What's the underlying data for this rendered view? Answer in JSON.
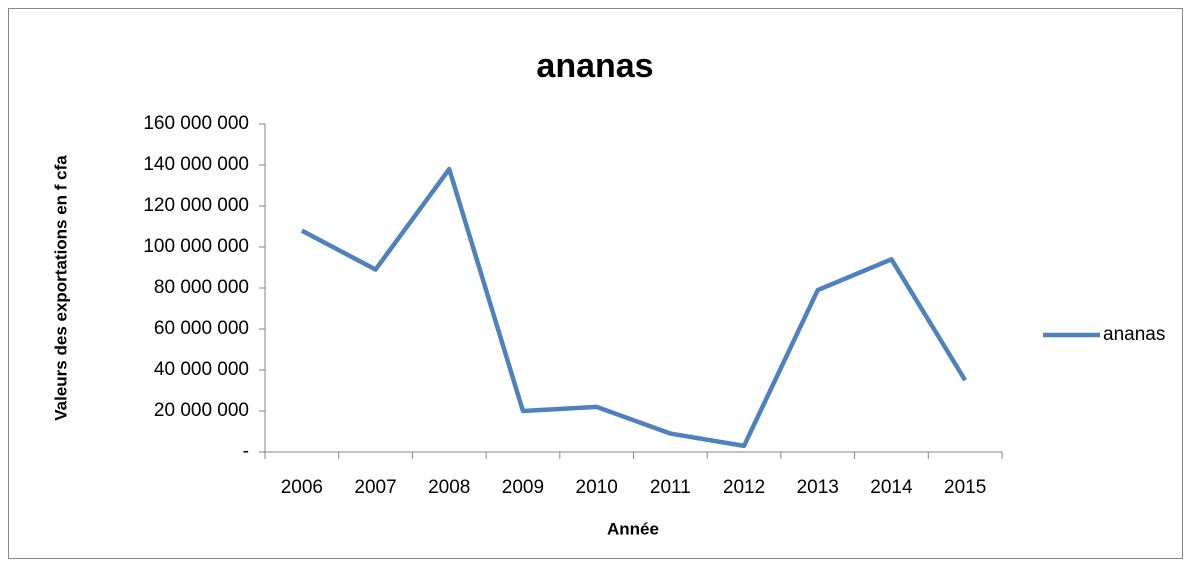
{
  "chart_data": {
    "type": "line",
    "title": "ananas",
    "xlabel": "Année",
    "ylabel": "Valeurs des exportations en f cfa",
    "categories": [
      "2006",
      "2007",
      "2008",
      "2009",
      "2010",
      "2011",
      "2012",
      "2013",
      "2014",
      "2015"
    ],
    "series": [
      {
        "name": "ananas",
        "color": "#4f81bd",
        "values": [
          108000000,
          89000000,
          138000000,
          20000000,
          22000000,
          9000000,
          3000000,
          79000000,
          94000000,
          35000000
        ]
      }
    ],
    "ylim": [
      0,
      160000000
    ],
    "yticks": [
      {
        "value": 0,
        "label": "-"
      },
      {
        "value": 20000000,
        "label": "20 000 000"
      },
      {
        "value": 40000000,
        "label": "40 000 000"
      },
      {
        "value": 60000000,
        "label": "60 000 000"
      },
      {
        "value": 80000000,
        "label": "80 000 000"
      },
      {
        "value": 100000000,
        "label": "100 000 000"
      },
      {
        "value": 120000000,
        "label": "120 000 000"
      },
      {
        "value": 140000000,
        "label": "140 000 000"
      },
      {
        "value": 160000000,
        "label": "160 000 000"
      }
    ],
    "grid": false,
    "legend": "right"
  }
}
